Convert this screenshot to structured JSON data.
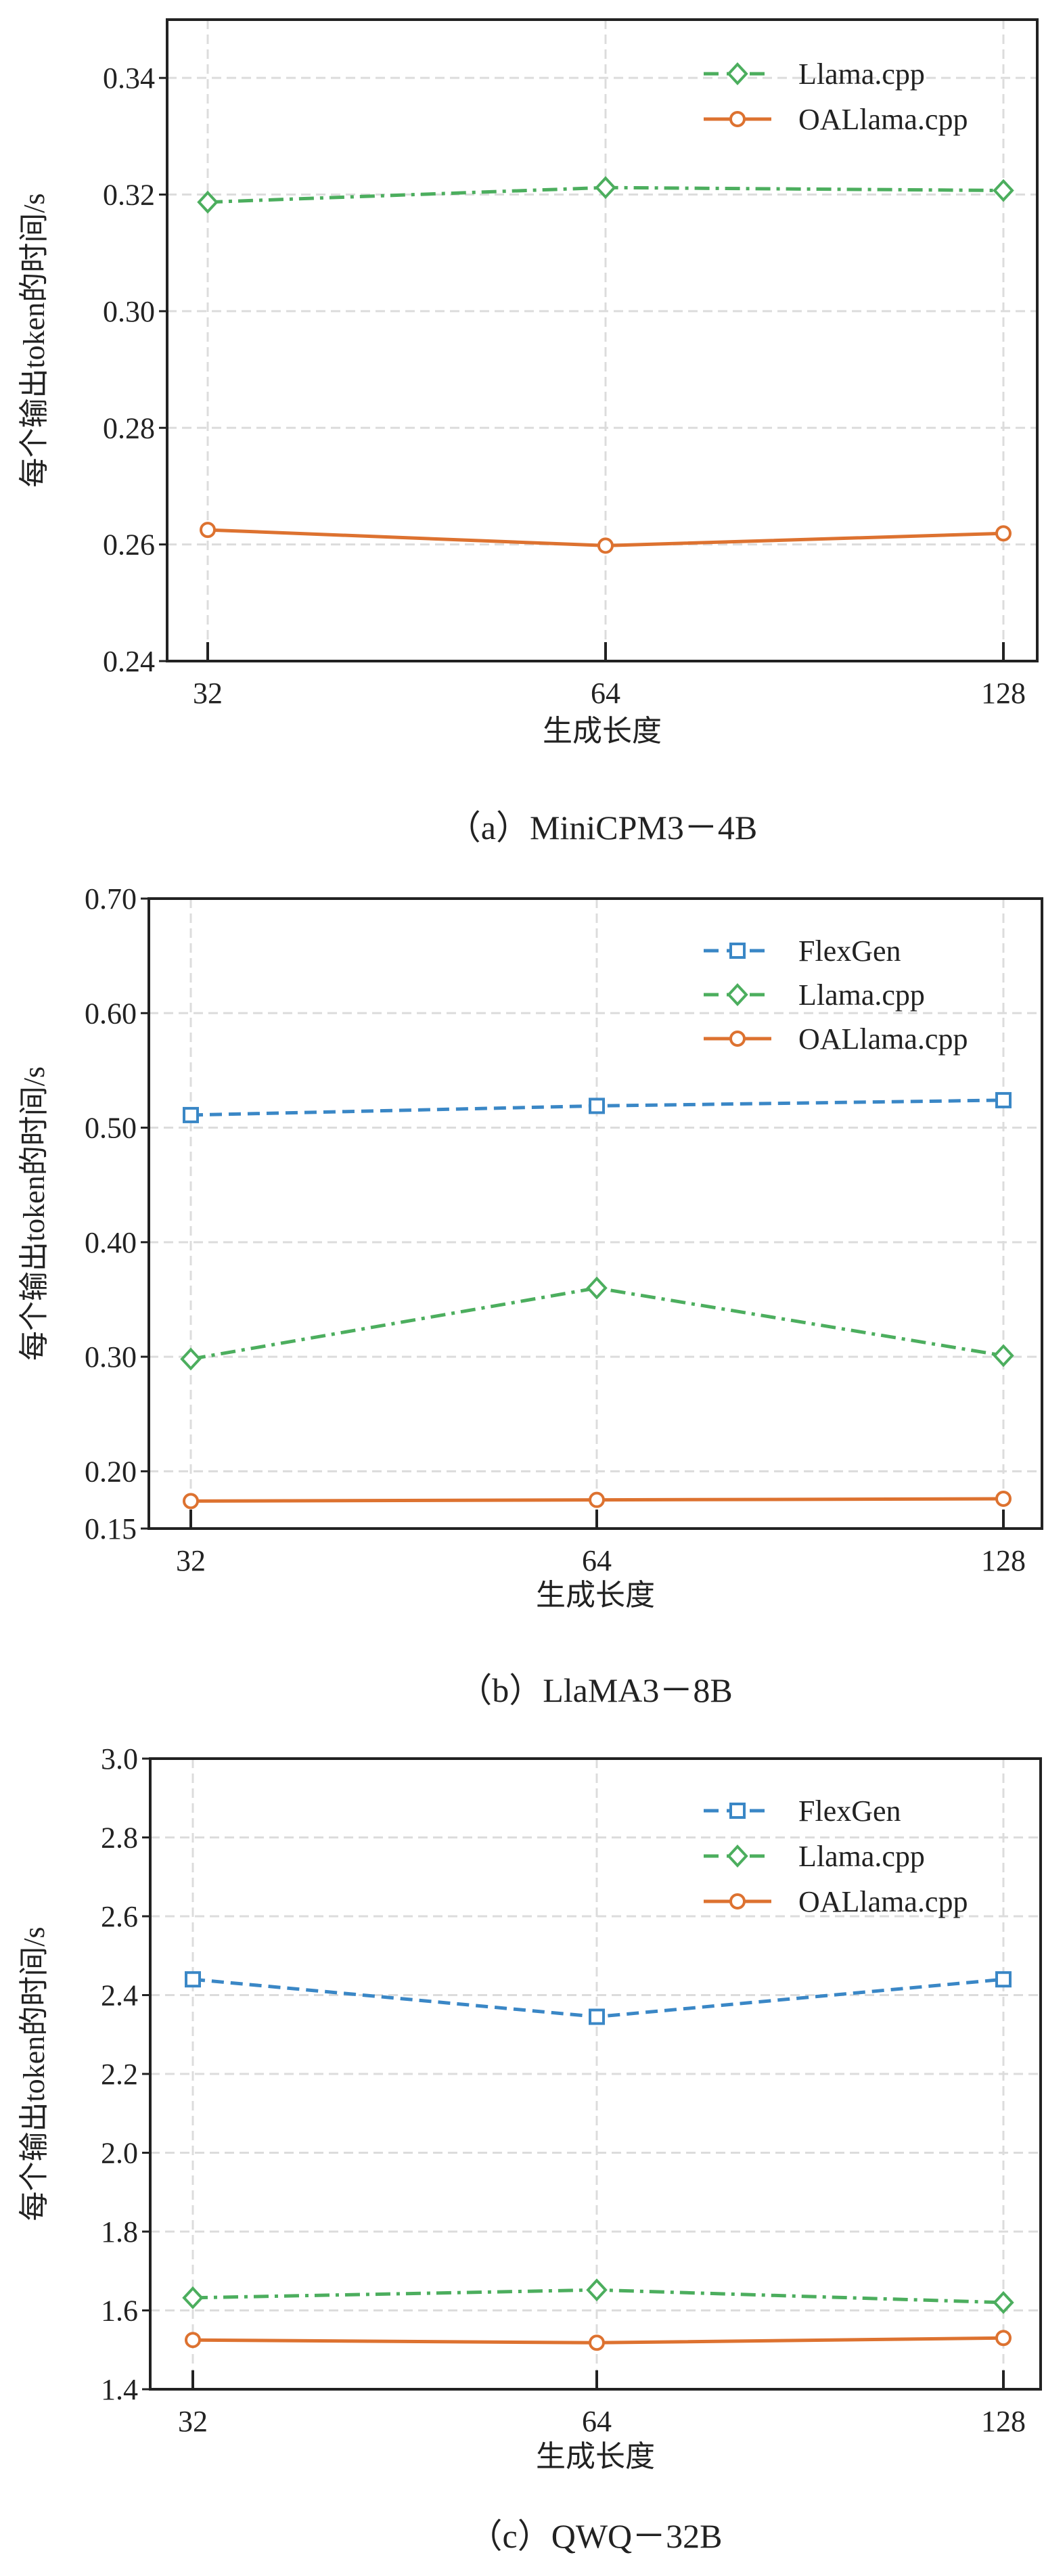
{
  "colors": {
    "FlexGen": "#3a87c6",
    "Llama.cpp": "#4cae5e",
    "OALlama.cpp": "#dd7230"
  },
  "chart_data": [
    {
      "type": "line",
      "caption": "（a）MiniCPM3－4B",
      "xlabel": "生成长度",
      "ylabel": "每个输出token的时间/s",
      "categories": [
        "32",
        "64",
        "128"
      ],
      "ylim": [
        0.24,
        0.35
      ],
      "yticks": [
        "0.24",
        "0.26",
        "0.28",
        "0.30",
        "0.32",
        "0.34"
      ],
      "grid": true,
      "legend": "top-right",
      "series": [
        {
          "name": "Llama.cpp",
          "marker": "diamond",
          "linestyle": "dashdot",
          "values": [
            0.3187,
            0.3212,
            0.3207
          ]
        },
        {
          "name": "OALlama.cpp",
          "marker": "circle",
          "linestyle": "solid",
          "values": [
            0.2625,
            0.2598,
            0.2619
          ]
        }
      ]
    },
    {
      "type": "line",
      "caption": "（b）LlaMA3－8B",
      "xlabel": "生成长度",
      "ylabel": "每个输出token的时间/s",
      "categories": [
        "32",
        "64",
        "128"
      ],
      "ylim": [
        0.15,
        0.7
      ],
      "yticks": [
        "0.15",
        "0.20",
        "0.30",
        "0.40",
        "0.50",
        "0.60",
        "0.70"
      ],
      "grid": true,
      "legend": "top-right",
      "series": [
        {
          "name": "FlexGen",
          "marker": "square",
          "linestyle": "dashed",
          "values": [
            0.511,
            0.519,
            0.524
          ]
        },
        {
          "name": "Llama.cpp",
          "marker": "diamond",
          "linestyle": "dashdot",
          "values": [
            0.298,
            0.36,
            0.301
          ]
        },
        {
          "name": "OALlama.cpp",
          "marker": "circle",
          "linestyle": "solid",
          "values": [
            0.174,
            0.175,
            0.176
          ]
        }
      ]
    },
    {
      "type": "line",
      "caption": "（c）QWQ－32B",
      "xlabel": "生成长度",
      "ylabel": "每个输出token的时间/s",
      "categories": [
        "32",
        "64",
        "128"
      ],
      "ylim": [
        1.4,
        3.0
      ],
      "yticks": [
        "1.4",
        "1.6",
        "1.8",
        "2.0",
        "2.2",
        "2.4",
        "2.6",
        "2.8",
        "3.0"
      ],
      "grid": true,
      "legend": "top-right",
      "series": [
        {
          "name": "FlexGen",
          "marker": "square",
          "linestyle": "dashed",
          "values": [
            2.44,
            2.345,
            2.44
          ]
        },
        {
          "name": "Llama.cpp",
          "marker": "diamond",
          "linestyle": "dashdot",
          "values": [
            1.632,
            1.652,
            1.62
          ]
        },
        {
          "name": "OALlama.cpp",
          "marker": "circle",
          "linestyle": "solid",
          "values": [
            1.525,
            1.518,
            1.53
          ]
        }
      ]
    }
  ]
}
